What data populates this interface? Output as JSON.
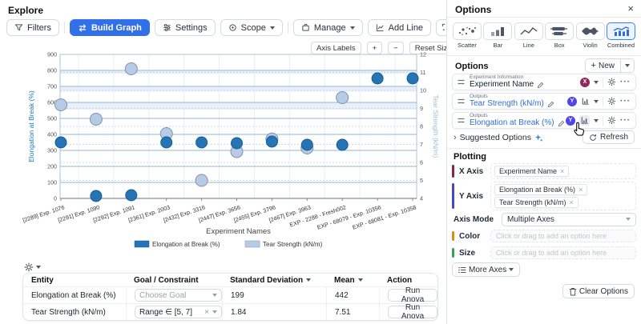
{
  "explore": {
    "title": "Explore",
    "toolbar": {
      "filters": "Filters",
      "build_graph": "Build Graph",
      "settings": "Settings",
      "scope": "Scope",
      "manage": "Manage",
      "add_line": "Add Line"
    },
    "chart_controls": {
      "axis_labels": "Axis Labels",
      "zoom_in": "+",
      "zoom_out": "−",
      "reset_size": "Reset Size"
    }
  },
  "chart_data": {
    "type": "scatter",
    "x_title": "Experiment Names",
    "categories": [
      "[2289] Exp. 1076",
      "[2291] Exp. 1090",
      "[2292] Exp. 1091",
      "[2361] Exp. 2003",
      "[2432] Exp. 3316",
      "[2447] Exp. 3656",
      "[2455] Exp. 3796",
      "[2467] Exp. 3963",
      "EXP - 2288 - Fresh002",
      "EXP - 68079 - Exp. 10356",
      "EXP - 68081 - Exp. 10358"
    ],
    "series": [
      {
        "name": "Elongation at Break (%)",
        "axis": "left",
        "color": "#2474b6",
        "stroke": "#1a5a8f",
        "values": [
          350,
          15,
          20,
          350,
          350,
          345,
          355,
          335,
          335,
          750,
          750
        ]
      },
      {
        "name": "Tear Strength (kN/m)",
        "axis": "right",
        "color": "#b7cbe7",
        "stroke": "#7d93ac",
        "values": [
          9.2,
          8.4,
          11.2,
          7.6,
          5.0,
          6.6,
          7.3,
          6.8,
          9.6,
          null,
          null
        ]
      }
    ],
    "left_axis": {
      "title": "Elongation at Break (%)",
      "min": 0,
      "max": 900,
      "step": 100,
      "color": "#1f77b4"
    },
    "right_axis": {
      "title": "Tear Strength (kN/m)",
      "min": 4,
      "max": 12,
      "step": 1,
      "color": "#9fbcdd"
    },
    "legend_position": "bottom",
    "grid": true
  },
  "table": {
    "headers": {
      "entity": "Entity",
      "goal": "Goal / Constraint",
      "std_dev": "Standard Deviation",
      "mean": "Mean",
      "action": "Action"
    },
    "rows": [
      {
        "entity": "Elongation at Break (%)",
        "goal": "Choose Goal",
        "std_dev": "199",
        "mean": "442",
        "action": "Run Anova"
      },
      {
        "entity": "Tear Strength (kN/m)",
        "goal": "Range ∈ [5, 7]",
        "std_dev": "1.84",
        "mean": "7.51",
        "action": "Run Anova"
      }
    ]
  },
  "options_panel": {
    "title": "Options",
    "close": "×",
    "chart_types": [
      {
        "label": "Scatter"
      },
      {
        "label": "Bar"
      },
      {
        "label": "Line"
      },
      {
        "label": "Box"
      },
      {
        "label": "Violin"
      },
      {
        "label": "Combined",
        "selected": true
      }
    ],
    "section_title": "Options",
    "new_button": "New",
    "cards": [
      {
        "category": "Experiment Information",
        "name": "Experiment Name",
        "badge": "X",
        "badge_color": "#96275a"
      },
      {
        "category": "Outputs",
        "name": "Tear Strength (kN/m)",
        "badge": "Y",
        "badge_color": "#4f46e5"
      },
      {
        "category": "Outputs",
        "name": "Elongation at Break (%)",
        "badge": "Y",
        "badge_color": "#4f46e5"
      }
    ],
    "suggested_options": "Suggested Options",
    "refresh": "Refresh",
    "plotting": {
      "title": "Plotting",
      "x_axis_label": "X Axis",
      "x_axis_chips": [
        "Experiment Name"
      ],
      "y_axis_label": "Y Axis",
      "y_axis_chips": [
        "Elongation at Break (%)",
        "Tear Strength (kN/m)"
      ],
      "axis_mode_label": "Axis Mode",
      "axis_mode_value": "Multiple Axes",
      "color_label": "Color",
      "size_label": "Size",
      "placeholder": "Click or drag to add an option here",
      "more_axes": "More Axes",
      "x_bar_color": "#8f2140",
      "y_bar_color": "#4047c8",
      "color_bar_color": "#df8a0a",
      "size_bar_color": "#36a14f"
    },
    "clear_options": "Clear Options"
  }
}
